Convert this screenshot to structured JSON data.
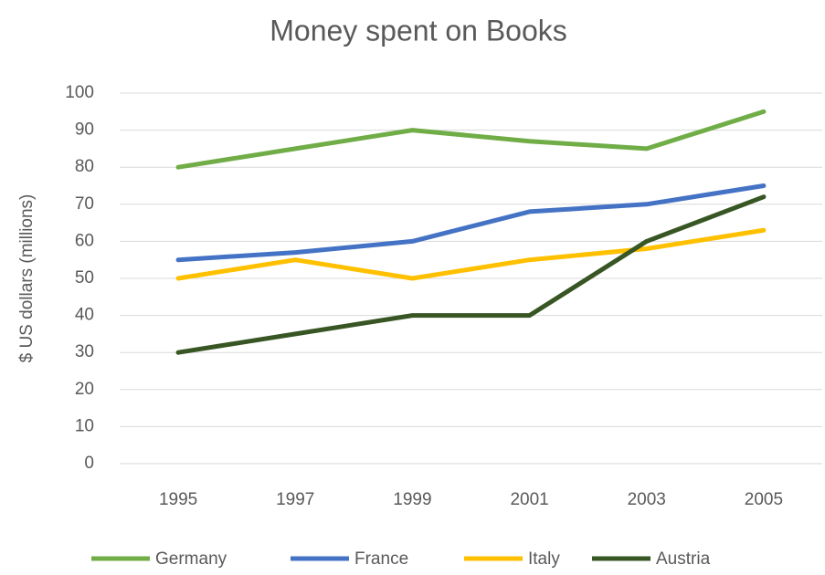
{
  "chart_data": {
    "type": "line",
    "title": "Money spent on Books",
    "y_label": "$ US dollars (millions)",
    "categories": [
      "1995",
      "1997",
      "1999",
      "2001",
      "2003",
      "2005"
    ],
    "series": [
      {
        "name": "Germany",
        "color": "#70ad47",
        "values": [
          80,
          85,
          90,
          87,
          85,
          95
        ]
      },
      {
        "name": "France",
        "color": "#4472c4",
        "values": [
          55,
          57,
          60,
          68,
          70,
          75
        ]
      },
      {
        "name": "Italy",
        "color": "#ffc000",
        "values": [
          50,
          55,
          50,
          55,
          58,
          63
        ]
      },
      {
        "name": "Austria",
        "color": "#375623",
        "values": [
          30,
          35,
          40,
          40,
          60,
          72
        ]
      }
    ],
    "ylim": [
      0,
      100
    ],
    "yticks": [
      0,
      10,
      20,
      30,
      40,
      50,
      60,
      70,
      80,
      90,
      100
    ],
    "grid": true,
    "legend": "bottom"
  }
}
